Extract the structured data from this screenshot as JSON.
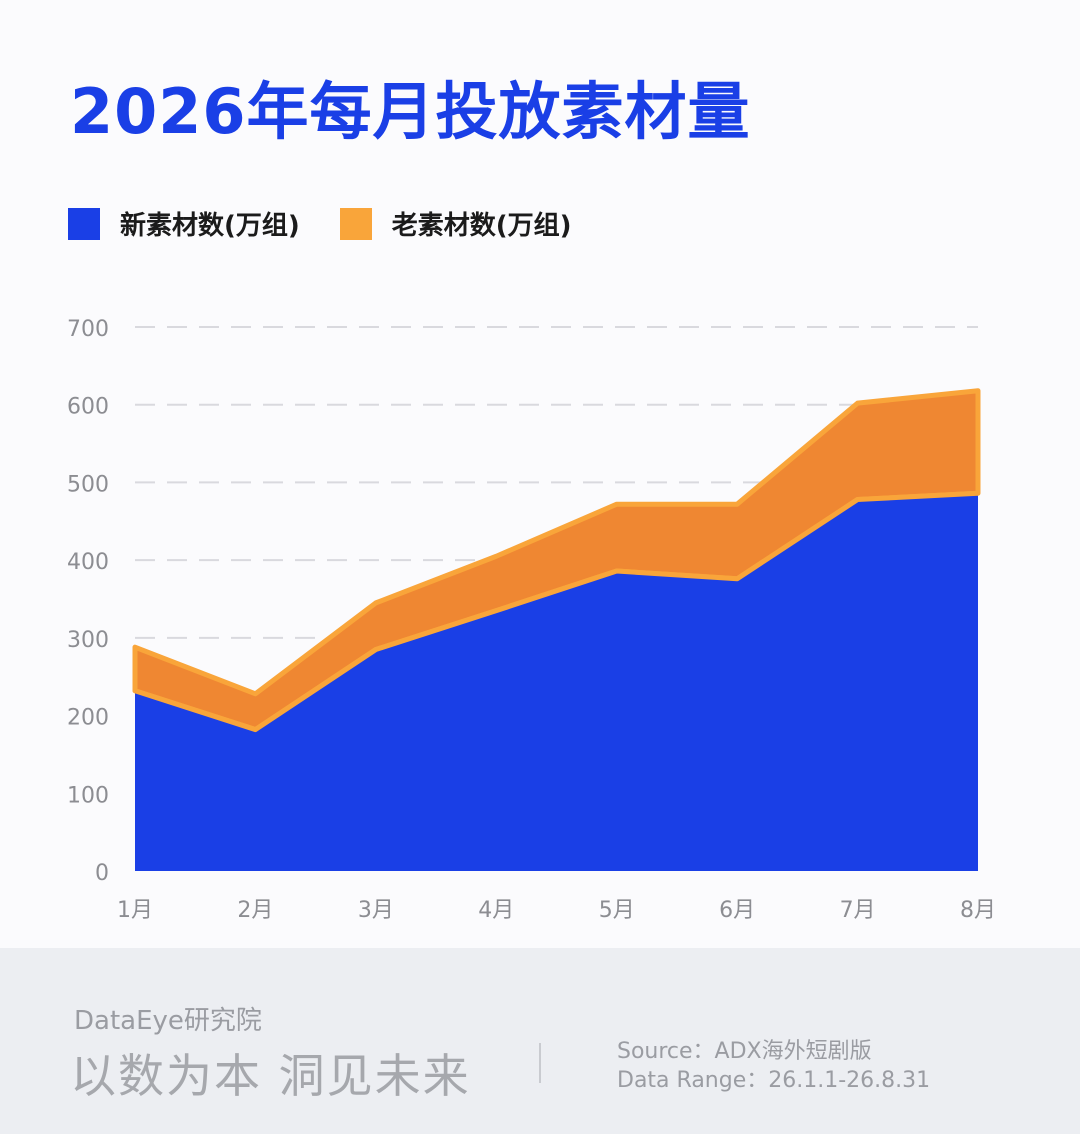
{
  "header": {
    "title": "2026年每月投放素材量"
  },
  "legend": {
    "items": [
      {
        "label": "新素材数(万组)",
        "color": "#1a3fe6"
      },
      {
        "label": "老素材数(万组)",
        "color": "#f9a53a"
      }
    ]
  },
  "chart_data": {
    "type": "area",
    "stacked": true,
    "categories": [
      "1月",
      "2月",
      "3月",
      "4月",
      "5月",
      "6月",
      "7月",
      "8月"
    ],
    "series": [
      {
        "name": "新素材数(万组)",
        "values": [
          232,
          182,
          285,
          335,
          386,
          376,
          478,
          486
        ],
        "color": "#1a3fe6"
      },
      {
        "name": "老素材数(万组)",
        "values": [
          56,
          46,
          60,
          70,
          86,
          96,
          124,
          132
        ],
        "color": "#ef8732",
        "stroke": "#f9a53a"
      }
    ],
    "ylim": [
      0,
      700
    ],
    "yticks": [
      0,
      100,
      200,
      300,
      400,
      500,
      600,
      700
    ],
    "grid": true,
    "legend_position": "top-left"
  },
  "footer": {
    "brand": "DataEye研究院",
    "slogan": "以数为本 洞见未来",
    "source": "Source：ADX海外短剧版",
    "range": "Data Range：26.1.1-26.8.31"
  }
}
